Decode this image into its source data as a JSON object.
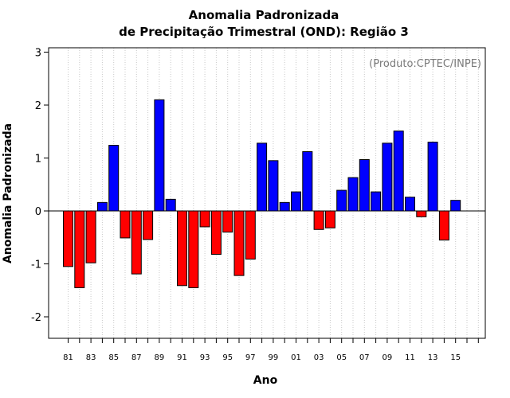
{
  "chart_data": {
    "type": "bar",
    "title": [
      "Anomalia Padronizada",
      "de Precipitação Trimestral (OND): Região 3"
    ],
    "xlabel": "Ano",
    "ylabel": "Anomalia Padronizada",
    "annotation": "(Produto:CPTEC/INPE)",
    "ylim": [
      -2.45,
      3.1
    ],
    "yticks": [
      -2,
      -1,
      0,
      1,
      2,
      3
    ],
    "ytick_labels": [
      "-2",
      "-1",
      "0",
      "1",
      "2",
      "3"
    ],
    "xtick_labels": [
      "81",
      "83",
      "85",
      "87",
      "89",
      "91",
      "93",
      "95",
      "97",
      "99",
      "01",
      "03",
      "05",
      "07",
      "09",
      "11",
      "13",
      "15"
    ],
    "grid": "vertical dotted",
    "positive_color": "#0000ff",
    "negative_color": "#ff0000",
    "categories": [
      "1981",
      "1982",
      "1983",
      "1984",
      "1985",
      "1986",
      "1987",
      "1988",
      "1989",
      "1990",
      "1991",
      "1992",
      "1993",
      "1994",
      "1995",
      "1996",
      "1997",
      "1998",
      "1999",
      "2000",
      "2001",
      "2002",
      "2003",
      "2004",
      "2005",
      "2006",
      "2007",
      "2008",
      "2009",
      "2010",
      "2011",
      "2012",
      "2013",
      "2014",
      "2015",
      "2016",
      "2017"
    ],
    "values": [
      -1.05,
      -1.45,
      -0.98,
      0.16,
      1.24,
      -0.51,
      -1.19,
      -0.54,
      2.1,
      0.22,
      -1.41,
      -1.45,
      -0.3,
      -0.82,
      -0.4,
      -1.22,
      -0.91,
      1.28,
      0.95,
      0.16,
      0.36,
      1.12,
      -0.35,
      -0.32,
      0.39,
      0.63,
      0.97,
      0.36,
      1.28,
      1.51,
      0.26,
      -0.11,
      1.3,
      -0.55,
      0.2,
      null,
      null
    ]
  }
}
